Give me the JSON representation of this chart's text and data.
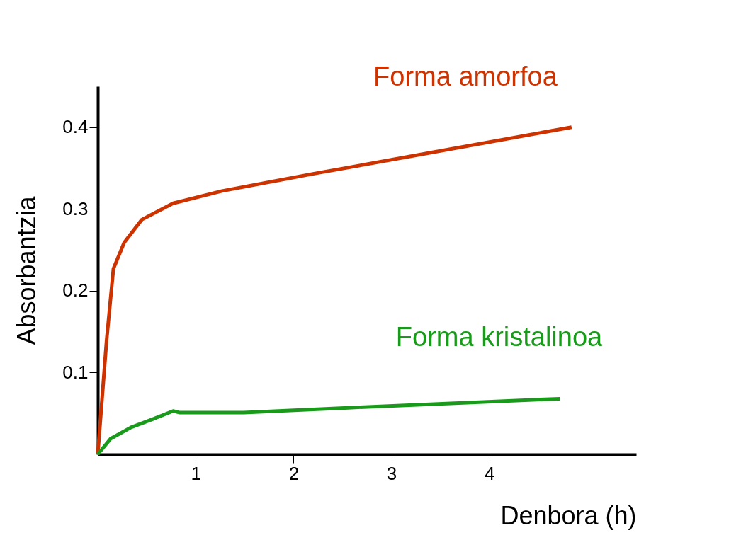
{
  "chart_data": {
    "type": "line",
    "xlabel": "Denbora (h)",
    "ylabel": "Absorbantzia",
    "xlim": [
      0,
      5.5
    ],
    "ylim": [
      0,
      0.45
    ],
    "xticks": [
      1,
      2,
      3,
      4
    ],
    "yticks": [
      0.1,
      0.2,
      0.3,
      0.4
    ],
    "grid": false,
    "marker": "none",
    "line_style": "solid",
    "series": [
      {
        "name": "Forma amorfoa",
        "color": "#cc3300",
        "x": [
          0,
          0.09,
          0.16,
          0.27,
          0.45,
          0.77,
          1.27,
          2.2,
          3.27,
          4.84
        ],
        "values": [
          0,
          0.139,
          0.227,
          0.259,
          0.287,
          0.307,
          0.322,
          0.343,
          0.366,
          0.4
        ]
      },
      {
        "name": "Forma kristalinoa",
        "color": "#1a9a1a",
        "x": [
          0,
          0.13,
          0.34,
          0.56,
          0.77,
          0.84,
          1.49,
          2.56,
          4.72
        ],
        "values": [
          0,
          0.019,
          0.033,
          0.043,
          0.053,
          0.051,
          0.051,
          0.057,
          0.068
        ]
      }
    ]
  }
}
